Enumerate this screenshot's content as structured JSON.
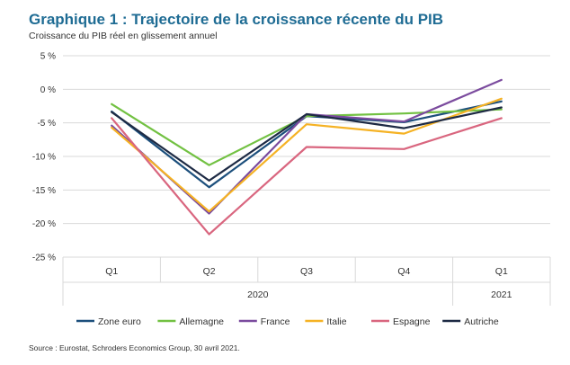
{
  "title": "Graphique 1 : Trajectoire de la croissance récente du PIB",
  "subtitle": "Croissance du PIB réel en glissement annuel",
  "source": "Source : Eurostat, Schroders Economics Group, 30 avril 2021.",
  "chart_data": {
    "type": "line",
    "title": "Graphique 1 : Trajectoire de la croissance récente du PIB",
    "ylabel": "Croissance du PIB réel en glissement annuel",
    "xlabel": "",
    "categories": [
      "Q1",
      "Q2",
      "Q3",
      "Q4",
      "Q1"
    ],
    "groups": [
      {
        "label": "2020",
        "span": [
          0,
          3
        ]
      },
      {
        "label": "2021",
        "span": [
          4,
          4
        ]
      }
    ],
    "ylim": [
      -25,
      5
    ],
    "yticks": [
      5,
      0,
      -5,
      -10,
      -15,
      -20,
      -25
    ],
    "ytick_labels": [
      "5 %",
      "0 %",
      "-5 %",
      "-10 %",
      "-15 %",
      "-20 %",
      "-25 %"
    ],
    "grid": true,
    "legend": "bottom",
    "series": [
      {
        "name": "Zone euro",
        "color": "#1c4f7c",
        "values": [
          -3.3,
          -14.6,
          -4.0,
          -4.9,
          -1.8
        ]
      },
      {
        "name": "Allemagne",
        "color": "#72c142",
        "values": [
          -2.2,
          -11.3,
          -4.0,
          -3.6,
          -3.0
        ]
      },
      {
        "name": "France",
        "color": "#7b4b9e",
        "values": [
          -5.4,
          -18.5,
          -3.7,
          -4.8,
          1.4
        ]
      },
      {
        "name": "Italie",
        "color": "#f5b224",
        "values": [
          -5.7,
          -18.2,
          -5.2,
          -6.6,
          -1.4
        ]
      },
      {
        "name": "Espagne",
        "color": "#d9667f",
        "values": [
          -4.3,
          -21.6,
          -8.6,
          -8.9,
          -4.3
        ]
      },
      {
        "name": "Autriche",
        "color": "#1d2a44",
        "values": [
          -3.4,
          -13.6,
          -3.7,
          -5.8,
          -2.7
        ]
      }
    ]
  }
}
